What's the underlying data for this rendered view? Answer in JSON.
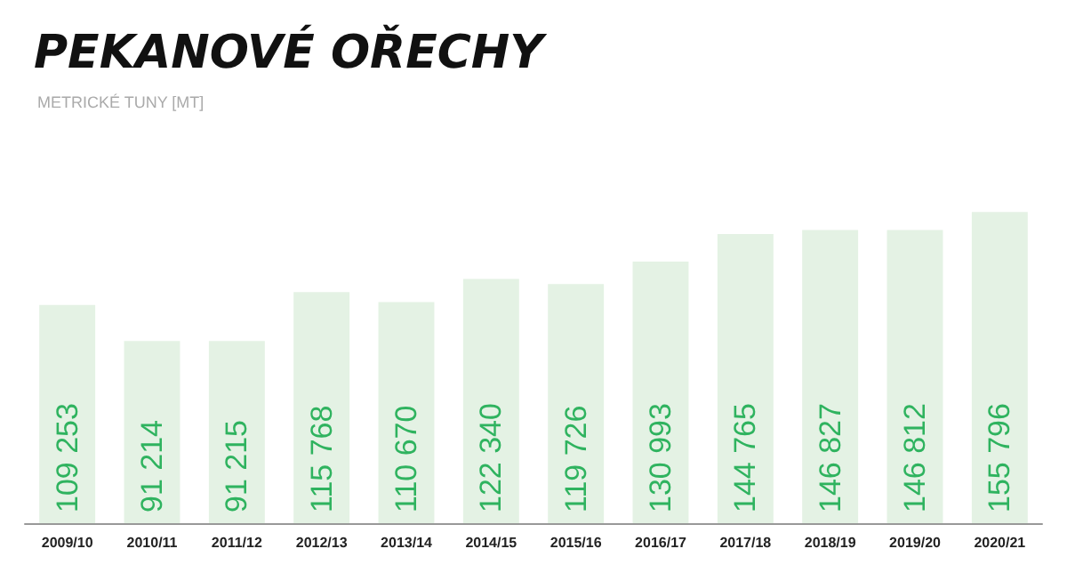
{
  "chart_data": {
    "type": "bar",
    "title": "PEKANOVÉ OŘECHY",
    "subtitle": "METRICKÉ TUNY [MT]",
    "categories": [
      "2009/10",
      "2010/11",
      "2011/12",
      "2012/13",
      "2013/14",
      "2014/15",
      "2015/16",
      "2016/17",
      "2017/18",
      "2018/19",
      "2019/20",
      "2020/21"
    ],
    "values": [
      109253,
      91214,
      91215,
      115768,
      110670,
      122340,
      119726,
      130993,
      144765,
      146827,
      146812,
      155796
    ],
    "value_labels": [
      "109 253",
      "91 214",
      "91 215",
      "115 768",
      "110 670",
      "122 340",
      "119 726",
      "130 993",
      "144 765",
      "146 827",
      "146 812",
      "155 796"
    ],
    "color": "#e4f2e4"
  }
}
